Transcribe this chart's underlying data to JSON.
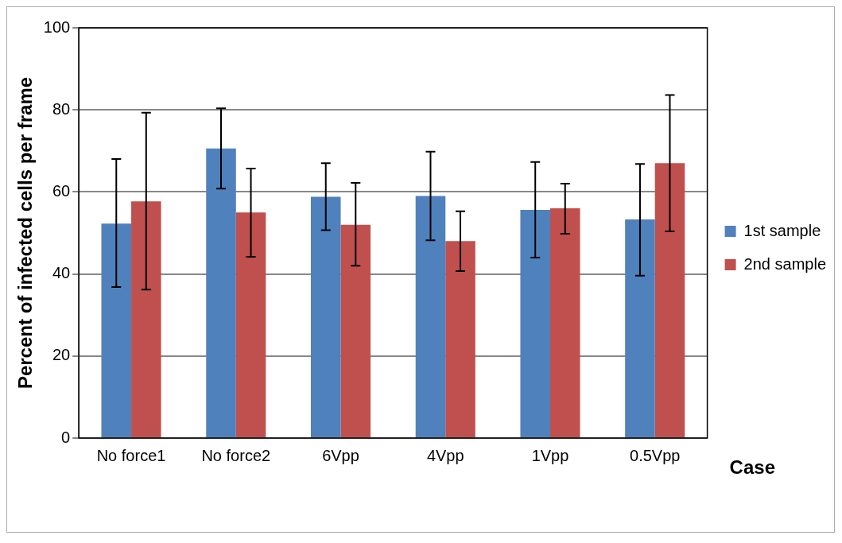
{
  "chart_data": {
    "type": "bar",
    "ylabel": "Percent of infected cells per frame",
    "xlabel": "Case",
    "categories": [
      "No force1",
      "No force2",
      "6Vpp",
      "4Vpp",
      "1Vpp",
      "0.5Vpp"
    ],
    "series": [
      {
        "name": "1st sample",
        "color": "#4f81bd",
        "values": [
          52.3,
          70.6,
          58.8,
          59,
          55.6,
          53.3
        ],
        "errors": [
          [
            36.8,
            68
          ],
          [
            60.8,
            80.4
          ],
          [
            50.7,
            67
          ],
          [
            48.2,
            69.8
          ],
          [
            44,
            67.3
          ],
          [
            39.6,
            66.8
          ]
        ]
      },
      {
        "name": "2nd sample",
        "color": "#c0504d",
        "values": [
          57.7,
          55,
          52,
          48,
          56,
          67
        ],
        "errors": [
          [
            36.2,
            79.3
          ],
          [
            44.2,
            65.7
          ],
          [
            42,
            62.2
          ],
          [
            40.7,
            55.3
          ],
          [
            49.8,
            62
          ],
          [
            50.4,
            83.6
          ]
        ]
      }
    ],
    "ylim": [
      0,
      100
    ],
    "yticks": [
      0,
      20,
      40,
      60,
      80,
      100
    ],
    "grid": "y",
    "legend": "right"
  }
}
